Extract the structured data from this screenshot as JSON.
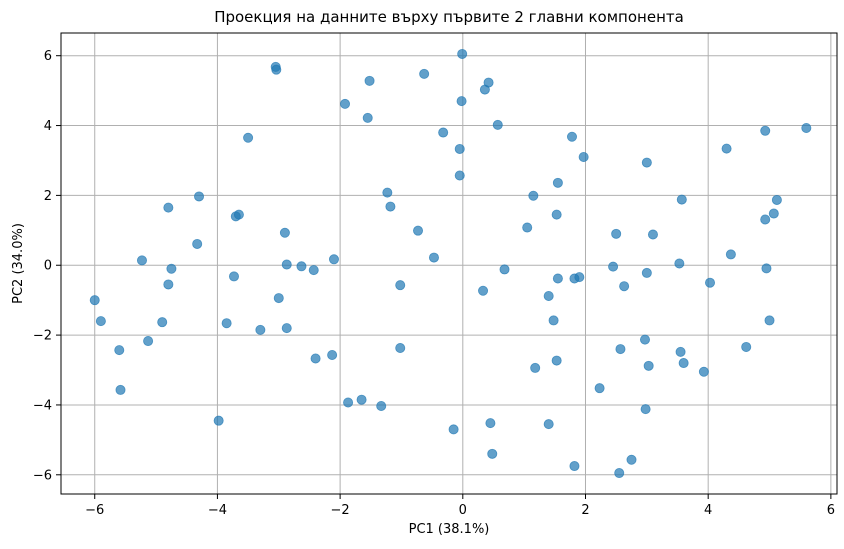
{
  "chart_data": {
    "type": "scatter",
    "title": "Проекция на данните върху първите 2 главни компонента",
    "xlabel": "PC1 (38.1%)",
    "ylabel": "PC2 (34.0%)",
    "xlim": [
      -6.55,
      6.1
    ],
    "ylim": [
      -6.55,
      6.65
    ],
    "xticks": [
      -6,
      -4,
      -2,
      0,
      2,
      4,
      6
    ],
    "yticks": [
      -6,
      -4,
      -2,
      0,
      2,
      4,
      6
    ],
    "xtick_labels": [
      "−6",
      "−4",
      "−2",
      "0",
      "2",
      "4",
      "6"
    ],
    "ytick_labels": [
      "−6",
      "−4",
      "−2",
      "0",
      "2",
      "4",
      "6"
    ],
    "grid": true,
    "marker_color": "#1f77b4",
    "marker_alpha": 0.7,
    "points": [
      {
        "x": -3.05,
        "y": 5.68
      },
      {
        "x": -3.04,
        "y": 5.6
      },
      {
        "x": -1.52,
        "y": 5.28
      },
      {
        "x": -0.63,
        "y": 5.48
      },
      {
        "x": -0.01,
        "y": 6.05
      },
      {
        "x": 0.42,
        "y": 5.23
      },
      {
        "x": 0.36,
        "y": 5.03
      },
      {
        "x": -0.02,
        "y": 4.7
      },
      {
        "x": -1.92,
        "y": 4.62
      },
      {
        "x": -1.55,
        "y": 4.22
      },
      {
        "x": 0.57,
        "y": 4.02
      },
      {
        "x": -0.32,
        "y": 3.8
      },
      {
        "x": -3.5,
        "y": 3.65
      },
      {
        "x": 1.78,
        "y": 3.68
      },
      {
        "x": -0.05,
        "y": 3.33
      },
      {
        "x": 1.97,
        "y": 3.1
      },
      {
        "x": 3.0,
        "y": 2.94
      },
      {
        "x": 4.3,
        "y": 3.34
      },
      {
        "x": 4.93,
        "y": 3.85
      },
      {
        "x": 5.6,
        "y": 3.93
      },
      {
        "x": -0.05,
        "y": 2.57
      },
      {
        "x": 1.55,
        "y": 2.36
      },
      {
        "x": -1.23,
        "y": 2.08
      },
      {
        "x": -4.3,
        "y": 1.97
      },
      {
        "x": -1.18,
        "y": 1.68
      },
      {
        "x": -4.8,
        "y": 1.65
      },
      {
        "x": -3.65,
        "y": 1.45
      },
      {
        "x": -3.7,
        "y": 1.4
      },
      {
        "x": 1.15,
        "y": 1.99
      },
      {
        "x": 1.53,
        "y": 1.45
      },
      {
        "x": 3.57,
        "y": 1.88
      },
      {
        "x": 5.12,
        "y": 1.87
      },
      {
        "x": 5.07,
        "y": 1.48
      },
      {
        "x": 4.93,
        "y": 1.31
      },
      {
        "x": 1.05,
        "y": 1.08
      },
      {
        "x": -0.73,
        "y": 0.99
      },
      {
        "x": -2.9,
        "y": 0.93
      },
      {
        "x": 2.5,
        "y": 0.9
      },
      {
        "x": 3.1,
        "y": 0.88
      },
      {
        "x": -4.33,
        "y": 0.61
      },
      {
        "x": 4.37,
        "y": 0.31
      },
      {
        "x": -0.47,
        "y": 0.22
      },
      {
        "x": -2.1,
        "y": 0.17
      },
      {
        "x": -5.23,
        "y": 0.14
      },
      {
        "x": -2.87,
        "y": 0.02
      },
      {
        "x": -2.63,
        "y": -0.03
      },
      {
        "x": 3.53,
        "y": 0.05
      },
      {
        "x": 2.45,
        "y": -0.04
      },
      {
        "x": -4.75,
        "y": -0.1
      },
      {
        "x": -2.43,
        "y": -0.14
      },
      {
        "x": 0.68,
        "y": -0.12
      },
      {
        "x": 4.95,
        "y": -0.09
      },
      {
        "x": 3.0,
        "y": -0.22
      },
      {
        "x": -3.73,
        "y": -0.32
      },
      {
        "x": 1.55,
        "y": -0.38
      },
      {
        "x": 1.9,
        "y": -0.34
      },
      {
        "x": 1.82,
        "y": -0.38
      },
      {
        "x": 4.03,
        "y": -0.5
      },
      {
        "x": -4.8,
        "y": -0.55
      },
      {
        "x": -1.02,
        "y": -0.57
      },
      {
        "x": 2.63,
        "y": -0.6
      },
      {
        "x": 0.33,
        "y": -0.73
      },
      {
        "x": 1.4,
        "y": -0.88
      },
      {
        "x": -6.0,
        "y": -1.0
      },
      {
        "x": -3.0,
        "y": -0.94
      },
      {
        "x": -5.9,
        "y": -1.6
      },
      {
        "x": -4.9,
        "y": -1.63
      },
      {
        "x": -3.85,
        "y": -1.66
      },
      {
        "x": -2.87,
        "y": -1.8
      },
      {
        "x": -3.3,
        "y": -1.85
      },
      {
        "x": 1.48,
        "y": -1.58
      },
      {
        "x": 5.0,
        "y": -1.58
      },
      {
        "x": -5.13,
        "y": -2.17
      },
      {
        "x": 2.97,
        "y": -2.13
      },
      {
        "x": -5.6,
        "y": -2.43
      },
      {
        "x": -1.02,
        "y": -2.37
      },
      {
        "x": 2.57,
        "y": -2.4
      },
      {
        "x": 3.55,
        "y": -2.48
      },
      {
        "x": 4.62,
        "y": -2.34
      },
      {
        "x": -2.13,
        "y": -2.57
      },
      {
        "x": -2.4,
        "y": -2.67
      },
      {
        "x": 1.53,
        "y": -2.73
      },
      {
        "x": 3.6,
        "y": -2.8
      },
      {
        "x": 3.03,
        "y": -2.88
      },
      {
        "x": 1.18,
        "y": -2.94
      },
      {
        "x": 3.93,
        "y": -3.05
      },
      {
        "x": 2.23,
        "y": -3.52
      },
      {
        "x": -5.58,
        "y": -3.57
      },
      {
        "x": -1.65,
        "y": -3.85
      },
      {
        "x": -1.87,
        "y": -3.93
      },
      {
        "x": -1.33,
        "y": -4.03
      },
      {
        "x": 2.98,
        "y": -4.12
      },
      {
        "x": -3.98,
        "y": -4.45
      },
      {
        "x": 0.45,
        "y": -4.52
      },
      {
        "x": 1.4,
        "y": -4.55
      },
      {
        "x": -0.15,
        "y": -4.7
      },
      {
        "x": 0.48,
        "y": -5.4
      },
      {
        "x": 2.75,
        "y": -5.57
      },
      {
        "x": 1.82,
        "y": -5.75
      },
      {
        "x": 2.55,
        "y": -5.95
      }
    ]
  }
}
